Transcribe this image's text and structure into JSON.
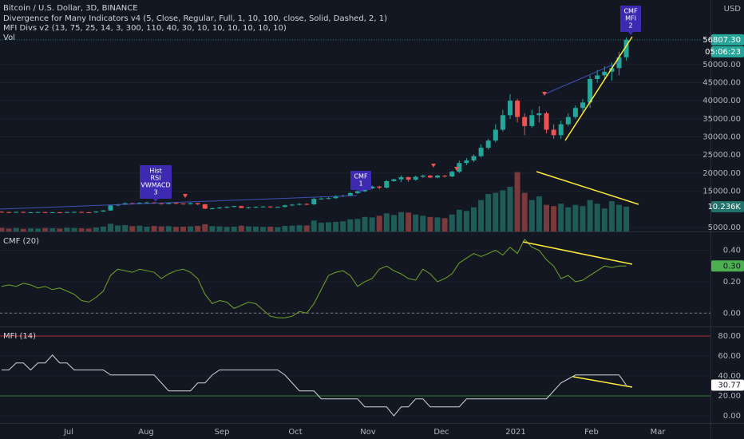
{
  "header": {
    "lines": [
      "Divergence for Many Indicators v4 (5, Close, Regular, Full, 1, 10, 100, close, Solid, Dashed, 2, 1)",
      "MFI Divs v2 (13, 75, 25, 14, 3, 300, 110, 40, 30, 10, 10, 10, 10, 10, 10)"
    ]
  },
  "x_labels": [
    "Jul",
    "Aug",
    "Sep",
    "Oct",
    "Nov",
    "Dec",
    "2021",
    "Feb",
    "Mar"
  ],
  "chart_data": [
    {
      "type": "candlestick",
      "title": "Bitcoin / U.S. Dollar, 3D, BINANCE",
      "currency": "USD",
      "countdown": "05:06:23",
      "up_color": "#26a69a",
      "down_color": "#ef5350",
      "open": [
        9350,
        9250,
        9150,
        9300,
        9100,
        9200,
        9250,
        9150,
        9200,
        9100,
        9250,
        9300,
        9200,
        9150,
        9400,
        9700,
        11100,
        11300,
        11700,
        11600,
        11800,
        11900,
        11700,
        11500,
        11800,
        11600,
        11450,
        11700,
        11400,
        10200,
        10300,
        10500,
        10700,
        10900,
        10400,
        10600,
        10700,
        10800,
        10600,
        10700,
        11100,
        11300,
        11500,
        11400,
        12900,
        13000,
        13100,
        13600,
        13800,
        14500,
        15000,
        15800,
        16300,
        16000,
        17800,
        18300,
        18900,
        18200,
        19000,
        19300,
        18800,
        19300,
        19100,
        20400,
        22800,
        23500,
        24700,
        27000,
        29000,
        32000,
        36000,
        40000,
        35500,
        33000,
        36000,
        36500,
        32000,
        30500,
        33500,
        35500,
        38000,
        39500,
        46000,
        47000,
        48000,
        49000,
        52000
      ],
      "high": [
        9450,
        9350,
        9400,
        9400,
        9300,
        9350,
        9350,
        9300,
        9300,
        9350,
        9400,
        9400,
        9300,
        9500,
        9800,
        11300,
        11500,
        11900,
        11800,
        12000,
        12100,
        12000,
        11800,
        11900,
        11900,
        11700,
        11900,
        11800,
        11500,
        10500,
        10700,
        10800,
        11000,
        11000,
        10700,
        10800,
        10900,
        10900,
        10800,
        11300,
        11500,
        11700,
        11700,
        13200,
        13300,
        13400,
        13900,
        14000,
        14800,
        15300,
        16100,
        16600,
        16500,
        18100,
        18500,
        19400,
        19000,
        19300,
        19600,
        19500,
        19600,
        19500,
        20700,
        23500,
        24200,
        25200,
        28000,
        29500,
        33500,
        37500,
        41800,
        40500,
        36500,
        37500,
        38500,
        37000,
        33500,
        34500,
        36500,
        38700,
        40500,
        47000,
        48500,
        49500,
        50500,
        53500,
        57500
      ],
      "low": [
        9150,
        9050,
        9050,
        9000,
        9000,
        9100,
        9050,
        9050,
        9000,
        9000,
        9150,
        9100,
        9050,
        9050,
        9300,
        9600,
        10900,
        11200,
        11400,
        11400,
        11700,
        11500,
        11300,
        11400,
        11400,
        11300,
        11300,
        11200,
        10100,
        10000,
        10100,
        10300,
        10500,
        10300,
        10200,
        10400,
        10500,
        10400,
        10400,
        10500,
        10900,
        11100,
        11200,
        11200,
        12700,
        12800,
        12900,
        13400,
        13600,
        14200,
        14800,
        15600,
        15500,
        15800,
        17600,
        17500,
        17600,
        17900,
        18700,
        18600,
        18600,
        18800,
        18900,
        20000,
        22200,
        23100,
        24300,
        26500,
        28500,
        31500,
        35000,
        34000,
        30500,
        32500,
        34000,
        31000,
        29500,
        29500,
        33000,
        35000,
        37000,
        38000,
        45000,
        46000,
        45500,
        47000,
        51000
      ],
      "close": [
        9250,
        9150,
        9300,
        9100,
        9200,
        9250,
        9150,
        9200,
        9100,
        9250,
        9300,
        9200,
        9150,
        9400,
        9700,
        11100,
        11300,
        11700,
        11600,
        11800,
        11900,
        11700,
        11500,
        11800,
        11600,
        11450,
        11700,
        11400,
        10200,
        10300,
        10500,
        10700,
        10900,
        10400,
        10600,
        10700,
        10800,
        10600,
        10700,
        11100,
        11300,
        11500,
        11400,
        12900,
        13000,
        13100,
        13600,
        13800,
        14500,
        15000,
        15800,
        16300,
        16000,
        17800,
        18300,
        18900,
        18200,
        19000,
        19300,
        18800,
        19300,
        19100,
        20400,
        22800,
        23500,
        24700,
        27000,
        29000,
        32000,
        36000,
        40000,
        35500,
        33000,
        36000,
        36500,
        32000,
        30500,
        33500,
        35500,
        38000,
        39500,
        46000,
        47000,
        48000,
        49000,
        52000,
        56807.3
      ],
      "close_last_label": "56807.30",
      "ylim": [
        3900,
        67800
      ],
      "yticks": [
        {
          "value": 5000,
          "label": "5000.00"
        },
        {
          "value": 15000,
          "label": "15000.00"
        },
        {
          "value": 20000,
          "label": "20000.00"
        },
        {
          "value": 25000,
          "label": "25000.00"
        },
        {
          "value": 30000,
          "label": "30000.00"
        },
        {
          "value": 35000,
          "label": "35000.00"
        },
        {
          "value": 40000,
          "label": "40000.00"
        },
        {
          "value": 45000,
          "label": "45000.00"
        },
        {
          "value": 50000,
          "label": "50000.00"
        }
      ],
      "annotations": [
        {
          "lines": [
            "Hist",
            "RSI",
            "VWMACD",
            "3"
          ]
        },
        {
          "lines": [
            "CMF",
            "1"
          ]
        },
        {
          "lines": [
            "CMF",
            "MFI",
            "2"
          ]
        }
      ],
      "volume": {
        "name": "Vol",
        "up_color": "#1f5c58",
        "down_color": "#7a3a3b",
        "values": [
          1.5,
          1.2,
          1.4,
          1.1,
          1.3,
          1.2,
          1.4,
          1.3,
          1.2,
          1.5,
          1.4,
          1.3,
          1.2,
          1.6,
          2.0,
          3.2,
          2.5,
          2.6,
          2.2,
          2.4,
          2.0,
          2.3,
          2.1,
          2.2,
          1.9,
          2.0,
          2.1,
          2.3,
          3.0,
          2.2,
          2.1,
          1.9,
          2.0,
          2.4,
          2.1,
          2.0,
          1.9,
          2.0,
          1.8,
          2.3,
          2.4,
          2.6,
          2.5,
          4.5,
          3.6,
          3.8,
          4.0,
          4.2,
          5.0,
          5.2,
          6.0,
          5.8,
          6.5,
          7.5,
          6.8,
          8.0,
          7.8,
          7.0,
          6.5,
          6.0,
          5.8,
          5.5,
          7.0,
          9.0,
          8.5,
          10.0,
          13.0,
          15.5,
          16.0,
          17.0,
          18.5,
          24.5,
          16.0,
          13.0,
          14.5,
          11.0,
          10.5,
          11.5,
          10.0,
          11.0,
          10.5,
          13.0,
          11.5,
          9.5,
          12.5,
          11.0,
          10.236
        ],
        "last_label": "10.236K"
      }
    },
    {
      "type": "line",
      "title": "CMF (20)",
      "color": "#6fa62a",
      "tag_color": "#4caf50",
      "values": [
        0.17,
        0.18,
        0.17,
        0.19,
        0.18,
        0.16,
        0.17,
        0.15,
        0.16,
        0.14,
        0.12,
        0.08,
        0.07,
        0.1,
        0.14,
        0.24,
        0.28,
        0.27,
        0.26,
        0.28,
        0.27,
        0.26,
        0.22,
        0.25,
        0.27,
        0.28,
        0.26,
        0.22,
        0.12,
        0.06,
        0.08,
        0.07,
        0.03,
        0.05,
        0.07,
        0.06,
        0.02,
        -0.02,
        -0.03,
        -0.03,
        -0.02,
        0.01,
        0.0,
        0.06,
        0.15,
        0.24,
        0.26,
        0.27,
        0.24,
        0.17,
        0.2,
        0.22,
        0.28,
        0.3,
        0.27,
        0.25,
        0.22,
        0.21,
        0.28,
        0.25,
        0.2,
        0.22,
        0.25,
        0.32,
        0.35,
        0.38,
        0.36,
        0.38,
        0.4,
        0.37,
        0.42,
        0.38,
        0.47,
        0.42,
        0.4,
        0.34,
        0.3,
        0.22,
        0.24,
        0.2,
        0.21,
        0.24,
        0.27,
        0.3,
        0.29,
        0.3,
        0.3
      ],
      "last_label": "0.30",
      "ylim": [
        -0.08,
        0.51
      ],
      "yticks": [
        {
          "value": 0,
          "label": "0.00"
        },
        {
          "value": 0.2,
          "label": "0.20"
        },
        {
          "value": 0.4,
          "label": "0.40"
        }
      ],
      "hlines": [
        {
          "value": 0,
          "color": "#787b86",
          "dashed": true
        }
      ]
    },
    {
      "type": "line",
      "title": "MFI (14)",
      "color": "#d1d4dc",
      "tag_color": "#ffffff",
      "values": [
        46,
        46,
        53,
        53,
        46,
        53,
        53,
        61,
        53,
        53,
        46,
        46,
        46,
        46,
        46,
        41,
        41,
        41,
        41,
        41,
        41,
        41,
        33,
        25,
        25,
        25,
        25,
        33,
        33,
        41,
        46,
        46,
        46,
        46,
        46,
        46,
        46,
        46,
        46,
        41,
        33,
        25,
        25,
        25,
        17,
        17,
        17,
        17,
        17,
        17,
        9,
        9,
        9,
        9,
        0,
        9,
        9,
        17,
        17,
        9,
        9,
        9,
        9,
        9,
        17,
        17,
        17,
        17,
        17,
        17,
        17,
        17,
        17,
        17,
        17,
        17,
        25,
        33,
        37,
        41,
        41,
        41,
        41,
        41,
        41,
        41,
        30.77
      ],
      "ylim": [
        -7.2,
        88.8
      ],
      "yticks": [
        {
          "value": 0,
          "label": "0.00"
        },
        {
          "value": 20,
          "label": "20.00"
        },
        {
          "value": 40,
          "label": "40.00"
        },
        {
          "value": 60,
          "label": "60.00"
        },
        {
          "value": 80,
          "label": "80.00"
        }
      ],
      "hlines": [
        {
          "value": 80,
          "color": "#b22833",
          "dashed": false
        },
        {
          "value": 20,
          "color": "#2e7d32",
          "dashed": false
        }
      ]
    }
  ]
}
